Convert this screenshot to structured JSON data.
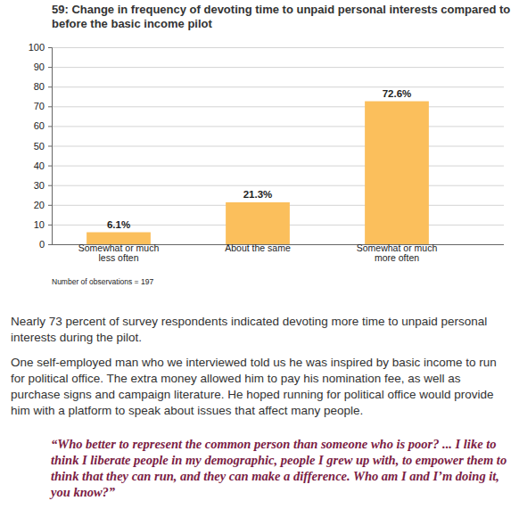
{
  "chart_data": {
    "type": "bar",
    "title": "59: Change in frequency of devoting time to unpaid personal interests compared to before the basic income pilot",
    "categories": [
      "Somewhat or much less often",
      "About the same",
      "Somewhat or much more often"
    ],
    "values": [
      6.1,
      21.3,
      72.6
    ],
    "value_labels": [
      "6.1%",
      "21.3%",
      "72.6%"
    ],
    "data_labels": true,
    "color": "#fbbf5c",
    "ylim": [
      0,
      100
    ],
    "yticks": [
      0,
      10,
      20,
      30,
      40,
      50,
      60,
      70,
      80,
      90,
      100
    ],
    "grid": true,
    "annotations": [
      "Number of observations = 197"
    ]
  },
  "document": {
    "paragraphs": [
      "Nearly 73 percent of survey respondents indicated devoting more time to unpaid personal interests during the pilot.",
      "One self-employed man who we interviewed told us he was inspired by basic income to run for political office. The extra money allowed him to pay his nomination fee, as well as purchase signs and campaign literature. He hoped running for political office would provide him with a platform to speak about issues that affect many people."
    ],
    "quote": "“Who better to represent the common person than someone who is poor? ... I like to think I liberate people in my demographic, people I grew up with, to empower them to think that they can run, and they can make a difference. Who am I and I’m doing it, you know?”"
  }
}
